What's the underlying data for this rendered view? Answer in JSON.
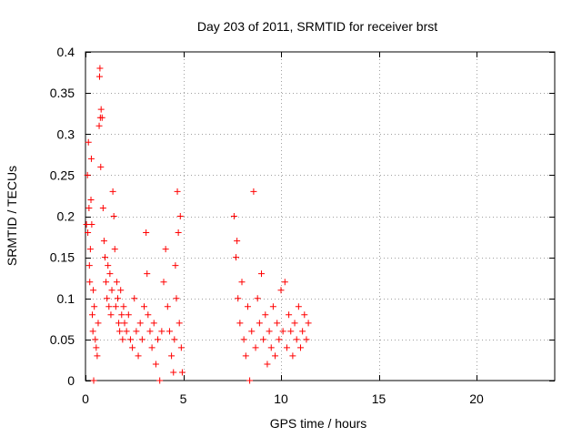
{
  "chart_data": {
    "type": "scatter",
    "title": "Day 203 of 2011, SRMTID for receiver brst",
    "xlabel": "GPS time / hours",
    "ylabel": "SRMTID / TECUs",
    "xlim": [
      0,
      24
    ],
    "ylim": [
      0,
      0.4
    ],
    "xticks": [
      0,
      5,
      10,
      15,
      20
    ],
    "xtick_labels": [
      "0",
      "5",
      "10",
      "15",
      "20"
    ],
    "yticks": [
      0,
      0.05,
      0.1,
      0.15,
      0.2,
      0.25,
      0.3,
      0.35,
      0.4
    ],
    "ytick_labels": [
      "0",
      "0.05",
      "0.1",
      "0.15",
      "0.2",
      "0.25",
      "0.3",
      "0.35",
      "0.4"
    ],
    "grid": true,
    "marker": "+",
    "color": "#ff0000",
    "series": [
      {
        "points": [
          [
            0.05,
            0.19
          ],
          [
            0.1,
            0.25
          ],
          [
            0.12,
            0.18
          ],
          [
            0.15,
            0.29
          ],
          [
            0.18,
            0.21
          ],
          [
            0.2,
            0.14
          ],
          [
            0.22,
            0.12
          ],
          [
            0.25,
            0.16
          ],
          [
            0.28,
            0.22
          ],
          [
            0.3,
            0.27
          ],
          [
            0.32,
            0.19
          ],
          [
            0.35,
            0.08
          ],
          [
            0.38,
            0.06
          ],
          [
            0.4,
            0.11
          ],
          [
            0.42,
            0.0
          ],
          [
            0.45,
            0.09
          ],
          [
            0.5,
            0.05
          ],
          [
            0.55,
            0.04
          ],
          [
            0.6,
            0.03
          ],
          [
            0.65,
            0.07
          ],
          [
            0.7,
            0.31
          ],
          [
            0.72,
            0.37
          ],
          [
            0.74,
            0.38
          ],
          [
            0.76,
            0.32
          ],
          [
            0.78,
            0.26
          ],
          [
            0.8,
            0.33
          ],
          [
            0.85,
            0.32
          ],
          [
            0.9,
            0.21
          ],
          [
            0.95,
            0.17
          ],
          [
            1.0,
            0.15
          ],
          [
            1.05,
            0.12
          ],
          [
            1.1,
            0.1
          ],
          [
            1.15,
            0.14
          ],
          [
            1.2,
            0.09
          ],
          [
            1.25,
            0.13
          ],
          [
            1.3,
            0.08
          ],
          [
            1.35,
            0.11
          ],
          [
            1.4,
            0.23
          ],
          [
            1.45,
            0.2
          ],
          [
            1.5,
            0.16
          ],
          [
            1.55,
            0.09
          ],
          [
            1.6,
            0.12
          ],
          [
            1.65,
            0.1
          ],
          [
            1.7,
            0.07
          ],
          [
            1.75,
            0.06
          ],
          [
            1.8,
            0.11
          ],
          [
            1.85,
            0.08
          ],
          [
            1.9,
            0.05
          ],
          [
            1.95,
            0.09
          ],
          [
            2.0,
            0.07
          ],
          [
            2.1,
            0.06
          ],
          [
            2.2,
            0.08
          ],
          [
            2.3,
            0.05
          ],
          [
            2.4,
            0.04
          ],
          [
            2.5,
            0.1
          ],
          [
            2.6,
            0.06
          ],
          [
            2.7,
            0.03
          ],
          [
            2.8,
            0.07
          ],
          [
            2.9,
            0.05
          ],
          [
            3.0,
            0.09
          ],
          [
            3.1,
            0.18
          ],
          [
            3.15,
            0.13
          ],
          [
            3.2,
            0.08
          ],
          [
            3.3,
            0.06
          ],
          [
            3.4,
            0.04
          ],
          [
            3.5,
            0.07
          ],
          [
            3.6,
            0.02
          ],
          [
            3.7,
            0.05
          ],
          [
            3.8,
            0.0
          ],
          [
            3.9,
            0.06
          ],
          [
            4.0,
            0.12
          ],
          [
            4.1,
            0.16
          ],
          [
            4.2,
            0.09
          ],
          [
            4.3,
            0.06
          ],
          [
            4.4,
            0.03
          ],
          [
            4.5,
            0.01
          ],
          [
            4.55,
            0.05
          ],
          [
            4.6,
            0.14
          ],
          [
            4.65,
            0.1
          ],
          [
            4.7,
            0.23
          ],
          [
            4.75,
            0.18
          ],
          [
            4.8,
            0.07
          ],
          [
            4.85,
            0.2
          ],
          [
            4.9,
            0.04
          ],
          [
            4.95,
            0.01
          ],
          [
            7.6,
            0.2
          ],
          [
            7.7,
            0.15
          ],
          [
            7.75,
            0.17
          ],
          [
            7.8,
            0.1
          ],
          [
            7.9,
            0.07
          ],
          [
            8.0,
            0.12
          ],
          [
            8.1,
            0.05
          ],
          [
            8.2,
            0.03
          ],
          [
            8.3,
            0.09
          ],
          [
            8.4,
            0.0
          ],
          [
            8.5,
            0.06
          ],
          [
            8.6,
            0.23
          ],
          [
            8.7,
            0.04
          ],
          [
            8.8,
            0.1
          ],
          [
            8.9,
            0.07
          ],
          [
            9.0,
            0.13
          ],
          [
            9.1,
            0.05
          ],
          [
            9.2,
            0.08
          ],
          [
            9.3,
            0.02
          ],
          [
            9.4,
            0.06
          ],
          [
            9.5,
            0.04
          ],
          [
            9.6,
            0.09
          ],
          [
            9.7,
            0.03
          ],
          [
            9.8,
            0.07
          ],
          [
            9.9,
            0.05
          ],
          [
            10.0,
            0.11
          ],
          [
            10.1,
            0.06
          ],
          [
            10.2,
            0.12
          ],
          [
            10.3,
            0.04
          ],
          [
            10.4,
            0.08
          ],
          [
            10.5,
            0.06
          ],
          [
            10.6,
            0.03
          ],
          [
            10.7,
            0.07
          ],
          [
            10.8,
            0.05
          ],
          [
            10.9,
            0.09
          ],
          [
            11.0,
            0.04
          ],
          [
            11.1,
            0.06
          ],
          [
            11.2,
            0.08
          ],
          [
            11.3,
            0.05
          ],
          [
            11.4,
            0.07
          ]
        ]
      }
    ]
  }
}
